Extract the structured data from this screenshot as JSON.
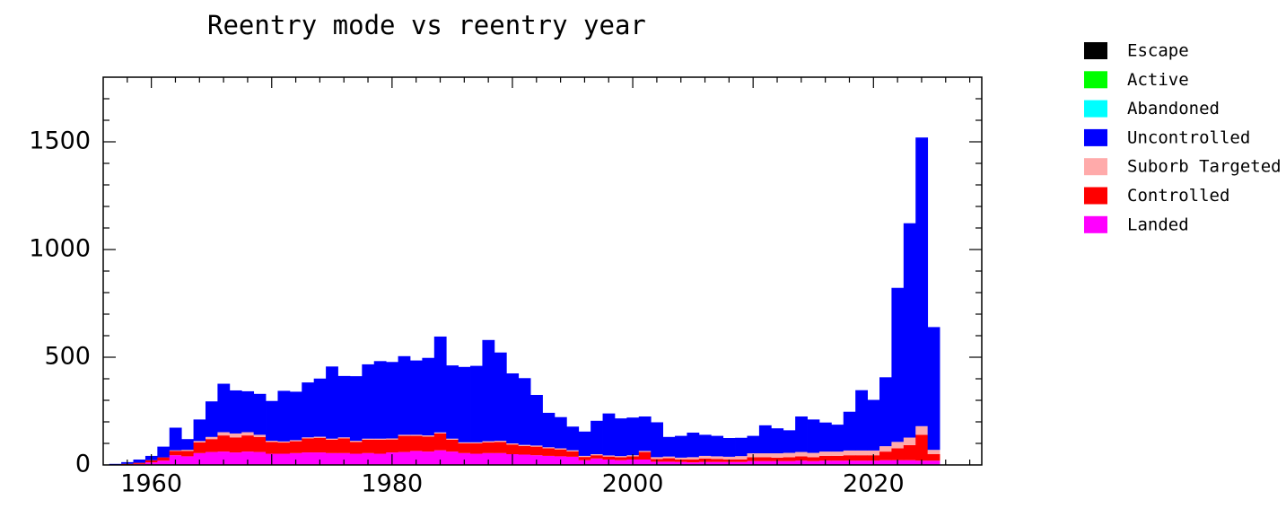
{
  "chart_data": {
    "type": "bar",
    "stacked": true,
    "title": "Reentry mode vs reentry year",
    "xlabel": "",
    "ylabel": "",
    "xlim": [
      1956,
      2029
    ],
    "ylim": [
      0,
      1800
    ],
    "x_ticks": [
      1960,
      1980,
      2000,
      2020
    ],
    "x_tick_labels": [
      "1960",
      "1980",
      "2000",
      "2020"
    ],
    "y_ticks": [
      0,
      500,
      1000,
      1500
    ],
    "y_tick_labels": [
      "0",
      "500",
      "1000",
      "1500"
    ],
    "legend_position": "top-right, outside plot",
    "grid": false,
    "years": [
      1957,
      1958,
      1959,
      1960,
      1961,
      1962,
      1963,
      1964,
      1965,
      1966,
      1967,
      1968,
      1969,
      1970,
      1971,
      1972,
      1973,
      1974,
      1975,
      1976,
      1977,
      1978,
      1979,
      1980,
      1981,
      1982,
      1983,
      1984,
      1985,
      1986,
      1987,
      1988,
      1989,
      1990,
      1991,
      1992,
      1993,
      1994,
      1995,
      1996,
      1997,
      1998,
      1999,
      2000,
      2001,
      2002,
      2003,
      2004,
      2005,
      2006,
      2007,
      2008,
      2009,
      2010,
      2011,
      2012,
      2013,
      2014,
      2015,
      2016,
      2017,
      2018,
      2019,
      2020,
      2021,
      2022,
      2023,
      2024,
      2025
    ],
    "series": [
      {
        "name": "Landed",
        "color": "#ff00ff",
        "values": [
          0,
          2,
          5,
          12,
          20,
          45,
          40,
          55,
          60,
          62,
          58,
          62,
          60,
          52,
          52,
          55,
          58,
          58,
          55,
          55,
          52,
          55,
          52,
          58,
          60,
          65,
          62,
          68,
          62,
          55,
          52,
          55,
          55,
          50,
          48,
          45,
          42,
          40,
          38,
          22,
          30,
          25,
          22,
          25,
          25,
          15,
          15,
          14,
          12,
          14,
          14,
          14,
          14,
          18,
          18,
          18,
          18,
          20,
          18,
          20,
          20,
          20,
          20,
          20,
          22,
          22,
          22,
          20,
          20
        ]
      },
      {
        "name": "Controlled",
        "color": "#ff0000",
        "values": [
          0,
          3,
          5,
          10,
          15,
          20,
          25,
          50,
          60,
          75,
          70,
          75,
          70,
          55,
          52,
          55,
          65,
          68,
          62,
          68,
          55,
          62,
          65,
          60,
          75,
          70,
          70,
          78,
          55,
          45,
          48,
          50,
          52,
          45,
          40,
          40,
          35,
          32,
          25,
          15,
          15,
          14,
          14,
          15,
          35,
          13,
          16,
          12,
          14,
          16,
          14,
          12,
          12,
          18,
          18,
          16,
          18,
          20,
          18,
          22,
          22,
          25,
          25,
          25,
          40,
          55,
          70,
          120,
          30
        ]
      },
      {
        "name": "Suborb Targeted",
        "color": "#ffaaaa",
        "values": [
          0,
          0,
          0,
          0,
          0,
          3,
          5,
          6,
          10,
          15,
          18,
          15,
          10,
          5,
          5,
          5,
          5,
          5,
          5,
          5,
          5,
          5,
          5,
          5,
          5,
          5,
          5,
          5,
          5,
          5,
          5,
          5,
          5,
          5,
          5,
          5,
          5,
          5,
          5,
          5,
          5,
          5,
          5,
          5,
          5,
          8,
          8,
          8,
          10,
          12,
          12,
          12,
          15,
          18,
          18,
          20,
          20,
          20,
          20,
          20,
          20,
          22,
          22,
          22,
          25,
          30,
          35,
          40,
          20
        ]
      },
      {
        "name": "Uncontrolled",
        "color": "#0000ff",
        "values": [
          5,
          8,
          15,
          20,
          50,
          105,
          50,
          100,
          165,
          225,
          200,
          190,
          190,
          185,
          235,
          225,
          255,
          270,
          335,
          285,
          300,
          345,
          360,
          355,
          365,
          345,
          360,
          445,
          340,
          350,
          355,
          470,
          410,
          325,
          310,
          235,
          160,
          145,
          110,
          113,
          155,
          195,
          175,
          175,
          160,
          162,
          91,
          101,
          114,
          98,
          95,
          87,
          85,
          81,
          130,
          116,
          105,
          165,
          155,
          135,
          125,
          180,
          280,
          235,
          320,
          715,
          995,
          1340,
          570
        ]
      },
      {
        "name": "Abandoned",
        "color": "#00ffff",
        "values": [
          0,
          0,
          0,
          0,
          0,
          0,
          0,
          0,
          0,
          0,
          0,
          0,
          0,
          0,
          0,
          0,
          0,
          0,
          0,
          0,
          0,
          0,
          0,
          0,
          0,
          0,
          0,
          0,
          0,
          0,
          0,
          0,
          0,
          0,
          0,
          0,
          0,
          0,
          0,
          0,
          0,
          0,
          0,
          0,
          0,
          0,
          0,
          0,
          0,
          0,
          0,
          0,
          0,
          0,
          0,
          0,
          0,
          0,
          0,
          0,
          0,
          0,
          0,
          0,
          0,
          0,
          0,
          0,
          0
        ]
      },
      {
        "name": "Active",
        "color": "#00ff00",
        "values": [
          0,
          0,
          0,
          0,
          0,
          0,
          0,
          0,
          0,
          0,
          0,
          0,
          0,
          0,
          0,
          0,
          0,
          0,
          0,
          0,
          0,
          0,
          0,
          0,
          0,
          0,
          0,
          0,
          0,
          0,
          0,
          0,
          0,
          0,
          0,
          0,
          0,
          0,
          0,
          0,
          0,
          0,
          0,
          0,
          0,
          0,
          0,
          0,
          0,
          0,
          0,
          0,
          0,
          0,
          0,
          0,
          0,
          0,
          0,
          0,
          0,
          0,
          0,
          0,
          0,
          0,
          0,
          0,
          0
        ]
      },
      {
        "name": "Escape",
        "color": "#000000",
        "values": [
          0,
          0,
          0,
          0,
          0,
          0,
          0,
          0,
          0,
          0,
          0,
          0,
          0,
          0,
          0,
          0,
          0,
          0,
          0,
          0,
          0,
          0,
          0,
          0,
          0,
          0,
          0,
          0,
          0,
          0,
          0,
          0,
          0,
          0,
          0,
          0,
          0,
          0,
          0,
          0,
          0,
          0,
          0,
          0,
          0,
          0,
          0,
          0,
          0,
          0,
          0,
          0,
          0,
          0,
          0,
          0,
          0,
          0,
          0,
          0,
          0,
          0,
          0,
          0,
          0,
          0,
          0,
          0,
          0
        ]
      }
    ],
    "legend": [
      {
        "label": "Escape",
        "color": "#000000"
      },
      {
        "label": "Active",
        "color": "#00ff00"
      },
      {
        "label": "Abandoned",
        "color": "#00ffff"
      },
      {
        "label": "Uncontrolled",
        "color": "#0000ff"
      },
      {
        "label": "Suborb Targeted",
        "color": "#ffaaaa"
      },
      {
        "label": "Controlled",
        "color": "#ff0000"
      },
      {
        "label": "Landed",
        "color": "#ff00ff"
      }
    ]
  }
}
